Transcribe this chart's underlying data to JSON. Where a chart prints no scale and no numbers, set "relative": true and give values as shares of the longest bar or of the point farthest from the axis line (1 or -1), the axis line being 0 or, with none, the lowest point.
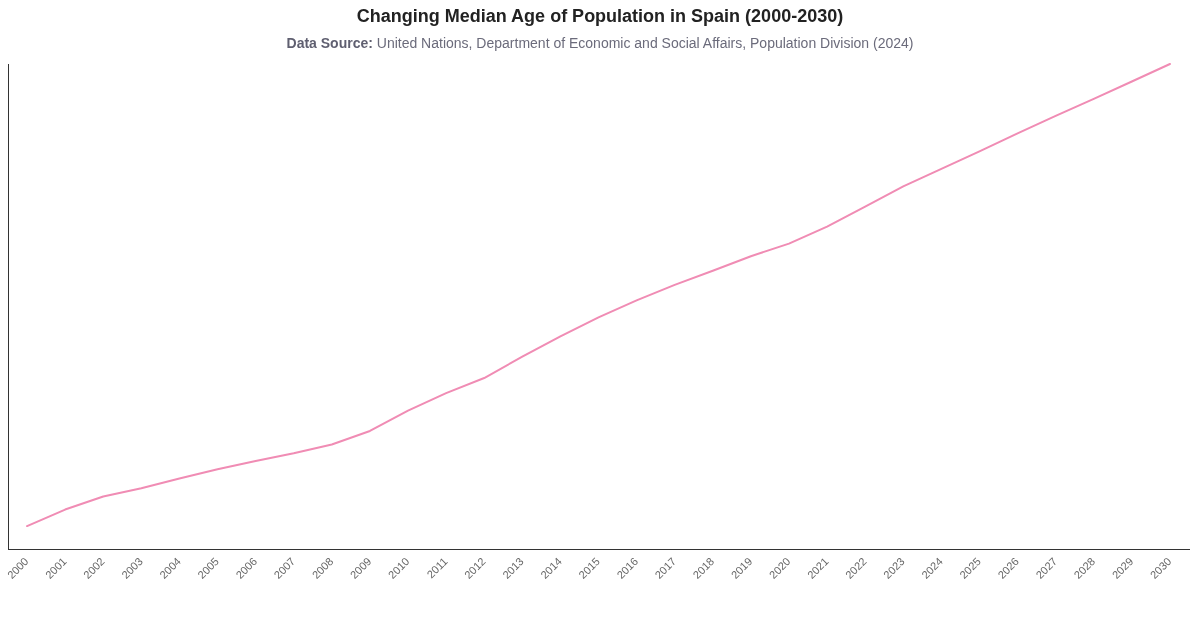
{
  "chart_data": {
    "type": "line",
    "title": "Changing Median Age of Population in Spain (2000-2030)",
    "subtitle": "Data Source: United Nations, Department of Economic and Social Affairs, Population Division (2024)",
    "categories": [
      "2000",
      "2001",
      "2002",
      "2003",
      "2004",
      "2005",
      "2006",
      "2007",
      "2008",
      "2009",
      "2010",
      "2011",
      "2012",
      "2013",
      "2014",
      "2015",
      "2016",
      "2017",
      "2018",
      "2019",
      "2020",
      "2021",
      "2022",
      "2023",
      "2024",
      "2025",
      "2026",
      "2027",
      "2028",
      "2029",
      "2030"
    ],
    "series": [
      {
        "color": "#f08cb4",
        "values": [
          0.048,
          0.082,
          0.109,
          0.126,
          0.146,
          0.165,
          0.182,
          0.198,
          0.216,
          0.244,
          0.286,
          0.322,
          0.353,
          0.397,
          0.439,
          0.478,
          0.513,
          0.545,
          0.574,
          0.604,
          0.63,
          0.665,
          0.706,
          0.748,
          0.784,
          0.82,
          0.857,
          0.893,
          0.928,
          0.964,
          1.0
        ]
      }
    ],
    "relative": true,
    "marker": "none"
  }
}
